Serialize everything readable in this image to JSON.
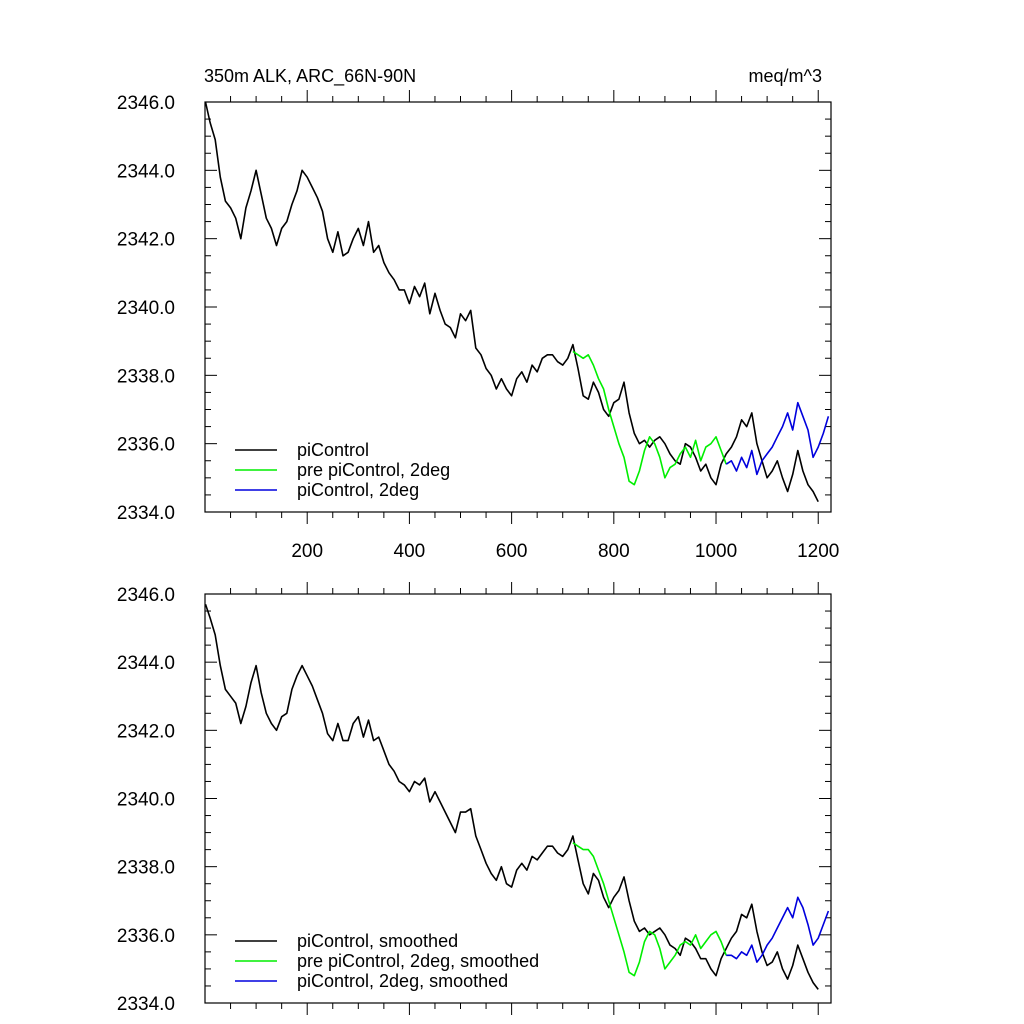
{
  "chart_data": [
    {
      "type": "line",
      "title": "350m ALK, ARC_66N-90N",
      "units": "meq/m^3",
      "xlim": [
        0,
        1225
      ],
      "ylim": [
        2334,
        2346
      ],
      "yticks": [
        "2346.0",
        "2344.0",
        "2342.0",
        "2340.0",
        "2338.0",
        "2336.0",
        "2334.0"
      ],
      "xticks": [
        "200",
        "400",
        "600",
        "800",
        "1000",
        "1200"
      ],
      "legend_position": "bottom-left",
      "series": [
        {
          "name": "piControl",
          "color": "#000000",
          "x": [
            1,
            10,
            20,
            30,
            40,
            50,
            60,
            70,
            80,
            90,
            100,
            110,
            120,
            130,
            140,
            150,
            160,
            170,
            180,
            190,
            200,
            210,
            220,
            230,
            240,
            250,
            260,
            270,
            280,
            290,
            300,
            310,
            320,
            330,
            340,
            350,
            360,
            370,
            380,
            390,
            400,
            410,
            420,
            430,
            440,
            450,
            460,
            470,
            480,
            490,
            500,
            510,
            520,
            530,
            540,
            550,
            560,
            570,
            580,
            590,
            600,
            610,
            620,
            630,
            640,
            650,
            660,
            670,
            680,
            690,
            700,
            710,
            720,
            730,
            740,
            750,
            760,
            770,
            780,
            790,
            800,
            810,
            820,
            830,
            840,
            850,
            860,
            870,
            880,
            890,
            900,
            910,
            920,
            930,
            940,
            950,
            960,
            970,
            980,
            990,
            1000,
            1010,
            1020,
            1030,
            1040,
            1050,
            1060,
            1070,
            1080,
            1090,
            1100,
            1110,
            1120,
            1130,
            1140,
            1150,
            1160,
            1170,
            1180,
            1190,
            1200
          ],
          "y": [
            2346.0,
            2345.4,
            2344.9,
            2343.8,
            2343.1,
            2342.9,
            2342.6,
            2342.0,
            2342.9,
            2343.4,
            2344.0,
            2343.3,
            2342.6,
            2342.3,
            2341.8,
            2342.3,
            2342.5,
            2343.0,
            2343.4,
            2344.0,
            2343.8,
            2343.5,
            2343.2,
            2342.8,
            2342.0,
            2341.6,
            2342.2,
            2341.5,
            2341.6,
            2342.0,
            2342.3,
            2341.8,
            2342.5,
            2341.6,
            2341.8,
            2341.3,
            2341.0,
            2340.8,
            2340.5,
            2340.5,
            2340.1,
            2340.6,
            2340.3,
            2340.7,
            2339.8,
            2340.4,
            2339.9,
            2339.5,
            2339.4,
            2339.1,
            2339.8,
            2339.6,
            2339.9,
            2338.8,
            2338.6,
            2338.2,
            2338.0,
            2337.6,
            2337.9,
            2337.6,
            2337.4,
            2337.9,
            2338.1,
            2337.8,
            2338.3,
            2338.1,
            2338.5,
            2338.6,
            2338.6,
            2338.4,
            2338.3,
            2338.5,
            2338.9,
            2338.2,
            2337.4,
            2337.3,
            2337.8,
            2337.5,
            2337.0,
            2336.8,
            2337.2,
            2337.3,
            2337.8,
            2336.9,
            2336.3,
            2336.0,
            2336.1,
            2335.9,
            2336.1,
            2336.2,
            2336.0,
            2335.7,
            2335.5,
            2335.4,
            2336.0,
            2335.9,
            2335.6,
            2335.2,
            2335.4,
            2335.0,
            2334.8,
            2335.4,
            2335.7,
            2335.9,
            2336.2,
            2336.7,
            2336.5,
            2336.9,
            2336.0,
            2335.5,
            2335.0,
            2335.2,
            2335.5,
            2335.0,
            2334.6,
            2335.1,
            2335.8,
            2335.2,
            2334.8,
            2334.6,
            2334.3
          ]
        },
        {
          "name": "pre piControl, 2deg",
          "color": "#00ee00",
          "x": [
            720,
            730,
            740,
            750,
            760,
            770,
            780,
            790,
            800,
            810,
            820,
            830,
            840,
            850,
            860,
            870,
            880,
            890,
            900,
            910,
            920,
            930,
            940,
            950,
            960,
            970,
            980,
            990,
            1000,
            1010,
            1020
          ],
          "y": [
            2338.7,
            2338.6,
            2338.5,
            2338.6,
            2338.3,
            2337.9,
            2337.6,
            2337.0,
            2336.5,
            2336.0,
            2335.6,
            2334.9,
            2334.8,
            2335.2,
            2335.8,
            2336.2,
            2336.0,
            2335.6,
            2335.0,
            2335.3,
            2335.4,
            2335.7,
            2335.9,
            2335.6,
            2336.1,
            2335.5,
            2335.9,
            2336.0,
            2336.2,
            2335.8,
            2335.4
          ]
        },
        {
          "name": "piControl, 2deg",
          "color": "#0000dd",
          "x": [
            1020,
            1030,
            1040,
            1050,
            1060,
            1070,
            1080,
            1090,
            1100,
            1110,
            1120,
            1130,
            1140,
            1150,
            1160,
            1170,
            1180,
            1190,
            1200,
            1210,
            1220
          ],
          "y": [
            2335.4,
            2335.5,
            2335.2,
            2335.6,
            2335.3,
            2335.8,
            2335.1,
            2335.5,
            2335.7,
            2335.9,
            2336.2,
            2336.5,
            2336.9,
            2336.4,
            2337.2,
            2336.8,
            2336.4,
            2335.6,
            2335.9,
            2336.3,
            2336.8
          ]
        }
      ]
    },
    {
      "type": "line",
      "ylim": [
        2334,
        2346
      ],
      "xlim": [
        0,
        1225
      ],
      "yticks": [
        "2346.0",
        "2344.0",
        "2342.0",
        "2340.0",
        "2338.0",
        "2336.0",
        "2334.0"
      ],
      "legend_position": "bottom-left",
      "series": [
        {
          "name": "piControl, smoothed",
          "color": "#000000",
          "x": [
            1,
            10,
            20,
            30,
            40,
            50,
            60,
            70,
            80,
            90,
            100,
            110,
            120,
            130,
            140,
            150,
            160,
            170,
            180,
            190,
            200,
            210,
            220,
            230,
            240,
            250,
            260,
            270,
            280,
            290,
            300,
            310,
            320,
            330,
            340,
            350,
            360,
            370,
            380,
            390,
            400,
            410,
            420,
            430,
            440,
            450,
            460,
            470,
            480,
            490,
            500,
            510,
            520,
            530,
            540,
            550,
            560,
            570,
            580,
            590,
            600,
            610,
            620,
            630,
            640,
            650,
            660,
            670,
            680,
            690,
            700,
            710,
            720,
            730,
            740,
            750,
            760,
            770,
            780,
            790,
            800,
            810,
            820,
            830,
            840,
            850,
            860,
            870,
            880,
            890,
            900,
            910,
            920,
            930,
            940,
            950,
            960,
            970,
            980,
            990,
            1000,
            1010,
            1020,
            1030,
            1040,
            1050,
            1060,
            1070,
            1080,
            1090,
            1100,
            1110,
            1120,
            1130,
            1140,
            1150,
            1160,
            1170,
            1180,
            1190,
            1200
          ],
          "y": [
            2345.7,
            2345.3,
            2344.8,
            2343.9,
            2343.2,
            2343.0,
            2342.8,
            2342.2,
            2342.7,
            2343.4,
            2343.9,
            2343.1,
            2342.5,
            2342.2,
            2342.0,
            2342.4,
            2342.5,
            2343.2,
            2343.6,
            2343.9,
            2343.6,
            2343.3,
            2342.9,
            2342.5,
            2341.9,
            2341.7,
            2342.2,
            2341.7,
            2341.7,
            2342.2,
            2342.4,
            2341.8,
            2342.3,
            2341.7,
            2341.8,
            2341.4,
            2341.0,
            2340.8,
            2340.5,
            2340.4,
            2340.2,
            2340.5,
            2340.4,
            2340.6,
            2339.9,
            2340.2,
            2339.9,
            2339.6,
            2339.3,
            2339.0,
            2339.6,
            2339.6,
            2339.7,
            2338.9,
            2338.5,
            2338.1,
            2337.8,
            2337.6,
            2338.0,
            2337.5,
            2337.4,
            2337.9,
            2338.1,
            2337.9,
            2338.3,
            2338.2,
            2338.4,
            2338.6,
            2338.6,
            2338.4,
            2338.3,
            2338.5,
            2338.9,
            2338.2,
            2337.5,
            2337.2,
            2337.8,
            2337.6,
            2337.1,
            2336.8,
            2337.1,
            2337.3,
            2337.7,
            2337.0,
            2336.4,
            2336.1,
            2336.2,
            2336.0,
            2336.1,
            2336.2,
            2336.0,
            2335.7,
            2335.6,
            2335.4,
            2335.9,
            2335.8,
            2335.6,
            2335.3,
            2335.3,
            2335.0,
            2334.8,
            2335.3,
            2335.6,
            2335.9,
            2336.1,
            2336.6,
            2336.5,
            2336.9,
            2336.1,
            2335.5,
            2335.1,
            2335.2,
            2335.5,
            2335.0,
            2334.7,
            2335.1,
            2335.7,
            2335.3,
            2334.9,
            2334.6,
            2334.4
          ]
        },
        {
          "name": "pre piControl, 2deg, smoothed",
          "color": "#00ee00",
          "x": [
            720,
            730,
            740,
            750,
            760,
            770,
            780,
            790,
            800,
            810,
            820,
            830,
            840,
            850,
            860,
            870,
            880,
            890,
            900,
            910,
            920,
            930,
            940,
            950,
            960,
            970,
            980,
            990,
            1000,
            1010,
            1020
          ],
          "y": [
            2338.7,
            2338.6,
            2338.5,
            2338.5,
            2338.3,
            2337.9,
            2337.5,
            2337.0,
            2336.5,
            2336.0,
            2335.5,
            2334.9,
            2334.8,
            2335.2,
            2335.8,
            2336.1,
            2336.0,
            2335.6,
            2335.0,
            2335.2,
            2335.4,
            2335.7,
            2335.8,
            2335.7,
            2336.0,
            2335.6,
            2335.8,
            2336.0,
            2336.1,
            2335.8,
            2335.4
          ]
        },
        {
          "name": "piControl, 2deg, smoothed",
          "color": "#0000dd",
          "x": [
            1020,
            1030,
            1040,
            1050,
            1060,
            1070,
            1080,
            1090,
            1100,
            1110,
            1120,
            1130,
            1140,
            1150,
            1160,
            1170,
            1180,
            1190,
            1200,
            1210,
            1220
          ],
          "y": [
            2335.4,
            2335.4,
            2335.3,
            2335.5,
            2335.4,
            2335.7,
            2335.2,
            2335.4,
            2335.7,
            2335.9,
            2336.2,
            2336.5,
            2336.8,
            2336.5,
            2337.1,
            2336.8,
            2336.3,
            2335.7,
            2335.9,
            2336.3,
            2336.7
          ]
        }
      ]
    }
  ]
}
